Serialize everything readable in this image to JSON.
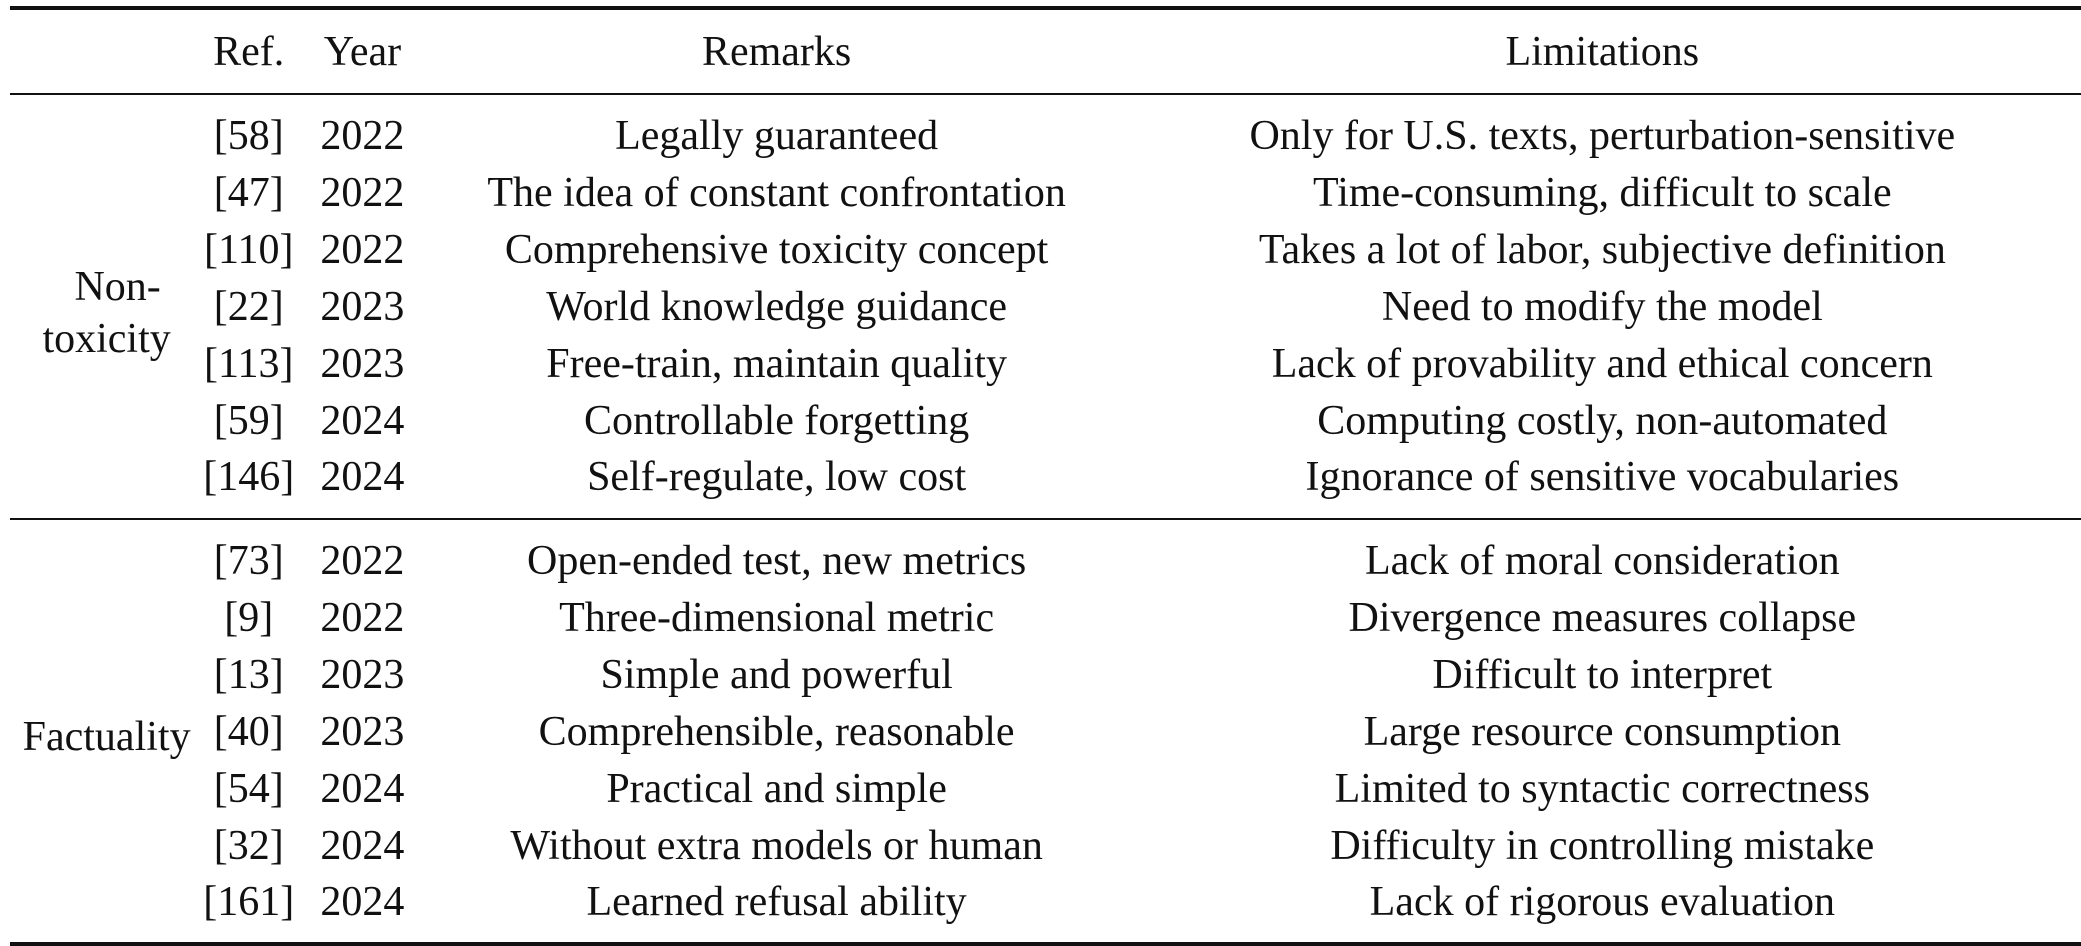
{
  "table": {
    "headers": {
      "group": "",
      "ref": "Ref.",
      "year": "Year",
      "remarks": "Remarks",
      "limitations": "Limitations"
    },
    "groups": [
      {
        "name_lines": [
          "Non-",
          "toxicity"
        ],
        "rows": [
          {
            "ref": "[58]",
            "year": "2022",
            "remarks": "Legally guaranteed",
            "limitations": "Only for U.S. texts, perturbation-sensitive"
          },
          {
            "ref": "[47]",
            "year": "2022",
            "remarks": "The idea of constant confrontation",
            "limitations": "Time-consuming, difficult to scale"
          },
          {
            "ref": "[110]",
            "year": "2022",
            "remarks": "Comprehensive toxicity concept",
            "limitations": "Takes a lot of labor, subjective definition"
          },
          {
            "ref": "[22]",
            "year": "2023",
            "remarks": "World knowledge guidance",
            "limitations": "Need to modify the model"
          },
          {
            "ref": "[113]",
            "year": "2023",
            "remarks": "Free-train, maintain quality",
            "limitations": "Lack of provability and ethical concern"
          },
          {
            "ref": "[59]",
            "year": "2024",
            "remarks": "Controllable forgetting",
            "limitations": "Computing costly, non-automated"
          },
          {
            "ref": "[146]",
            "year": "2024",
            "remarks": "Self-regulate, low cost",
            "limitations": "Ignorance of sensitive vocabularies"
          }
        ]
      },
      {
        "name_lines": [
          "Factuality"
        ],
        "rows": [
          {
            "ref": "[73]",
            "year": "2022",
            "remarks": "Open-ended test, new metrics",
            "limitations": "Lack of moral consideration"
          },
          {
            "ref": "[9]",
            "year": "2022",
            "remarks": "Three-dimensional metric",
            "limitations": "Divergence measures collapse"
          },
          {
            "ref": "[13]",
            "year": "2023",
            "remarks": "Simple and powerful",
            "limitations": "Difficult to interpret"
          },
          {
            "ref": "[40]",
            "year": "2023",
            "remarks": "Comprehensible, reasonable",
            "limitations": "Large resource consumption"
          },
          {
            "ref": "[54]",
            "year": "2024",
            "remarks": "Practical and simple",
            "limitations": "Limited to syntactic correctness"
          },
          {
            "ref": "[32]",
            "year": "2024",
            "remarks": "Without extra models or human",
            "limitations": "Difficulty in controlling mistake"
          },
          {
            "ref": "[161]",
            "year": "2024",
            "remarks": "Learned refusal ability",
            "limitations": "Lack of rigorous evaluation"
          }
        ]
      }
    ]
  }
}
